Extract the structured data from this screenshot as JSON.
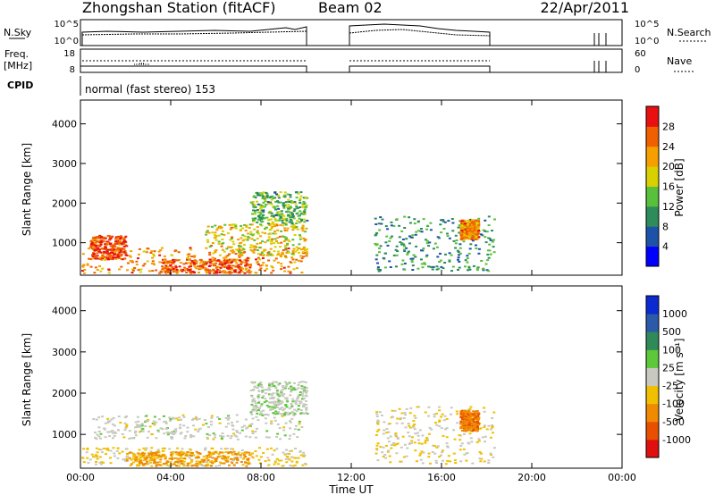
{
  "header": {
    "station": "Zhongshan Station (fitACF)",
    "beam": "Beam 02",
    "date": "22/Apr/2011"
  },
  "strips": {
    "nsky_label": "N.Sky",
    "nsearch_label": "N.Search",
    "freq_label_1": "Freq.",
    "freq_label_2": "[MHz]",
    "nave_label": "Nave",
    "cpid_label": "CPID",
    "cpid_text": "normal (fast stereo) 153",
    "nsky_ticks": [
      "10^5",
      "10^0"
    ],
    "nsearch_ticks": [
      "10^5",
      "10^0"
    ],
    "freq_ticks": [
      "18",
      "8"
    ],
    "nave_ticks": [
      "60",
      "0"
    ]
  },
  "axes": {
    "ylabel": "Slant Range [km]",
    "xlabel": "Time UT",
    "y_ticks": [
      "1000",
      "2000",
      "3000",
      "4000"
    ],
    "x_ticks": [
      "00:00",
      "04:00",
      "08:00",
      "12:00",
      "16:00",
      "20:00",
      "00:00"
    ]
  },
  "colorbars": {
    "power": {
      "label": "Power [dB]",
      "ticks": [
        "4",
        "8",
        "12",
        "16",
        "20",
        "24",
        "28"
      ],
      "colors": [
        "#0000ff",
        "#1e52a8",
        "#2c8c5a",
        "#58c03a",
        "#d8d000",
        "#f5a000",
        "#f06000",
        "#e81010"
      ]
    },
    "velocity": {
      "label": "Velocity [m s⁻¹]",
      "ticks": [
        "1000",
        "500",
        "100",
        "25",
        "-25",
        "-100",
        "-500",
        "-1000"
      ],
      "colors": [
        "#0b2bd0",
        "#2a5aa8",
        "#2f8a58",
        "#5cc83a",
        "#c8c8c0",
        "#f0c000",
        "#f08a00",
        "#e85000",
        "#e01010"
      ]
    }
  },
  "chart_data": {
    "type": "heatmap",
    "title": "Zhongshan Station (fitACF)",
    "xlabel": "Time UT",
    "ylabel": "Slant Range [km]",
    "xlim": [
      0,
      24
    ],
    "ylim": [
      180,
      4600
    ],
    "x_tick_values": [
      0,
      4,
      8,
      12,
      16,
      20,
      24
    ],
    "y_tick_values": [
      1000,
      2000,
      3000,
      4000
    ],
    "data_gaps_hours": [
      [
        10.0,
        12.0
      ],
      [
        18.3,
        22.9
      ]
    ],
    "panels": [
      {
        "name": "Power",
        "units": "dB",
        "colorbar_range": [
          0,
          30
        ],
        "regions": [
          {
            "t": [
              0.0,
              10.0
            ],
            "r": [
              250,
              900
            ],
            "level": 22
          },
          {
            "t": [
              0.4,
              2.0
            ],
            "r": [
              600,
              1200
            ],
            "level": 26
          },
          {
            "t": [
              3.5,
              7.5
            ],
            "r": [
              250,
              600
            ],
            "level": 25
          },
          {
            "t": [
              5.5,
              10.0
            ],
            "r": [
              700,
              1500
            ],
            "level": 18
          },
          {
            "t": [
              7.5,
              10.0
            ],
            "r": [
              1500,
              2300
            ],
            "level": 12
          },
          {
            "t": [
              13.0,
              18.3
            ],
            "r": [
              300,
              1700
            ],
            "level": 10
          },
          {
            "t": [
              16.8,
              17.6
            ],
            "r": [
              1100,
              1600
            ],
            "level": 22
          }
        ]
      },
      {
        "name": "Velocity",
        "units": "m s-1",
        "colorbar_range": [
          -1000,
          1000
        ],
        "regions": [
          {
            "t": [
              0.0,
              10.0
            ],
            "r": [
              250,
              700
            ],
            "level": -150
          },
          {
            "t": [
              0.5,
              9.8
            ],
            "r": [
              900,
              1500
            ],
            "level": 0
          },
          {
            "t": [
              2.0,
              7.5
            ],
            "r": [
              250,
              600
            ],
            "level": -400
          },
          {
            "t": [
              7.5,
              10.0
            ],
            "r": [
              1500,
              2300
            ],
            "level": 50
          },
          {
            "t": [
              13.0,
              18.3
            ],
            "r": [
              300,
              1700
            ],
            "level": -120
          },
          {
            "t": [
              16.8,
              17.6
            ],
            "r": [
              1100,
              1600
            ],
            "level": -500
          }
        ]
      }
    ]
  }
}
